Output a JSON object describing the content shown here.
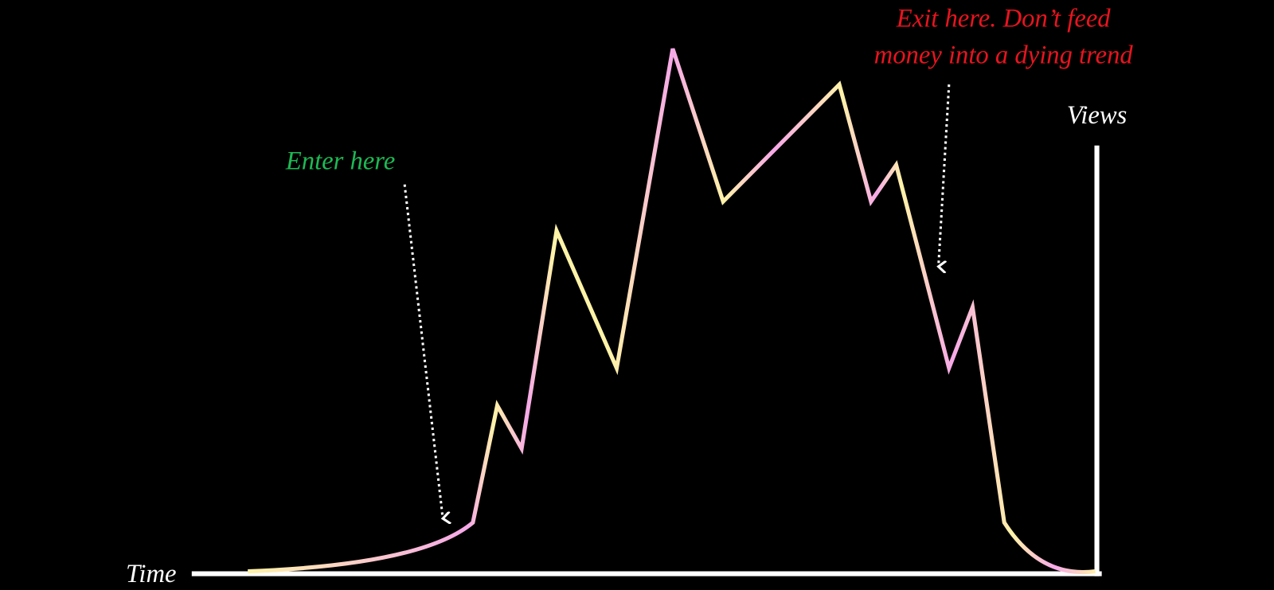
{
  "axes": {
    "x_label": "Time",
    "y_label": "Views"
  },
  "annotations": {
    "enter": "Enter here",
    "exit": [
      "Exit here. Don’t feed",
      "money into a dying trend"
    ]
  }
}
